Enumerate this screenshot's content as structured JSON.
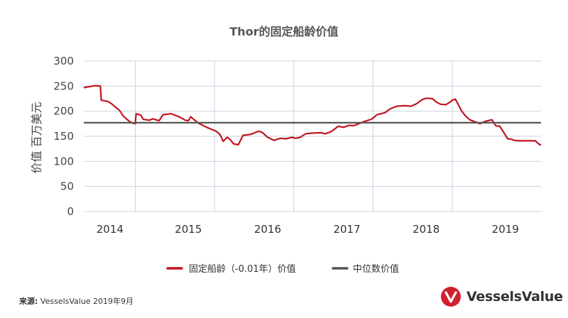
{
  "source": {
    "label": "来源:",
    "text": " VesselsValue 2019年9月"
  },
  "logo": {
    "text": "VesselsValue",
    "icon": "vesselsvalue-logo-icon",
    "color": "#d0202e"
  },
  "colors": {
    "series_line": "#c0161f",
    "median_line": "#555555",
    "grid": "#c9d3e0"
  },
  "chart_data": {
    "type": "line",
    "title": "Thor的固定船龄价值",
    "ylabel": "价值 百万美元",
    "xlabel": "",
    "ylim": [
      0,
      300
    ],
    "yticks": [
      "0",
      "50",
      "100",
      "150",
      "200",
      "250",
      "300"
    ],
    "xlim": [
      2013.65,
      2019.42
    ],
    "xticks": [
      {
        "label": "2014",
        "x": 2013.98
      },
      {
        "label": "2015",
        "x": 2014.97
      },
      {
        "label": "2016",
        "x": 2015.97
      },
      {
        "label": "2017",
        "x": 2016.97
      },
      {
        "label": "2018",
        "x": 2017.97
      },
      {
        "label": "2019",
        "x": 2018.97
      }
    ],
    "vgrid_x": [
      2014.3,
      2015.3,
      2016.3,
      2017.3,
      2018.3
    ],
    "legend_position": "bottom",
    "series": [
      {
        "name": "固定船龄（-0.01年）价值",
        "x": [
          2013.65,
          2013.72,
          2013.8,
          2013.86,
          2013.87,
          2013.96,
          2013.99,
          2014.0,
          2014.05,
          2014.1,
          2014.15,
          2014.2,
          2014.25,
          2014.3,
          2014.31,
          2014.37,
          2014.4,
          2014.48,
          2014.52,
          2014.6,
          2014.65,
          2014.75,
          2014.85,
          2014.9,
          2014.93,
          2014.97,
          2015.0,
          2015.05,
          2015.1,
          2015.15,
          2015.2,
          2015.26,
          2015.32,
          2015.36,
          2015.38,
          2015.41,
          2015.46,
          2015.5,
          2015.54,
          2015.6,
          2015.66,
          2015.72,
          2015.78,
          2015.82,
          2015.86,
          2015.9,
          2015.97,
          2016.05,
          2016.13,
          2016.2,
          2016.28,
          2016.32,
          2016.38,
          2016.45,
          2016.5,
          2016.6,
          2016.65,
          2016.7,
          2016.75,
          2016.78,
          2016.86,
          2016.93,
          2017.0,
          2017.05,
          2017.12,
          2017.2,
          2017.28,
          2017.35,
          2017.45,
          2017.52,
          2017.6,
          2017.7,
          2017.78,
          2017.85,
          2017.92,
          2017.97,
          2018.05,
          2018.1,
          2018.15,
          2018.22,
          2018.28,
          2018.3,
          2018.34,
          2018.38,
          2018.42,
          2018.47,
          2018.52,
          2018.6,
          2018.65,
          2018.72,
          2018.8,
          2018.85,
          2018.9,
          2019.0,
          2019.05,
          2019.08,
          2019.15,
          2019.2,
          2019.3,
          2019.35,
          2019.38,
          2019.42
        ],
        "y": [
          247,
          249,
          251,
          250,
          222,
          219,
          216,
          215,
          208,
          202,
          190,
          183,
          177,
          175,
          195,
          192,
          184,
          182,
          185,
          181,
          193,
          195,
          189,
          185,
          182,
          181,
          189,
          182,
          176,
          172,
          168,
          164,
          160,
          155,
          150,
          140,
          148,
          143,
          135,
          133,
          152,
          153,
          155,
          158,
          160,
          158,
          148,
          142,
          146,
          145,
          148,
          146,
          148,
          155,
          156,
          157,
          157,
          155,
          158,
          160,
          170,
          168,
          172,
          171,
          175,
          180,
          184,
          193,
          197,
          205,
          210,
          211,
          210,
          215,
          223,
          226,
          225,
          218,
          214,
          213,
          219,
          222,
          224,
          212,
          200,
          190,
          183,
          178,
          175,
          180,
          183,
          171,
          170,
          145,
          144,
          142,
          141,
          141,
          141,
          141,
          136,
          132
        ]
      },
      {
        "name": "中位数价值",
        "x": [
          2013.65,
          2019.42
        ],
        "y": [
          177,
          177
        ]
      }
    ]
  }
}
